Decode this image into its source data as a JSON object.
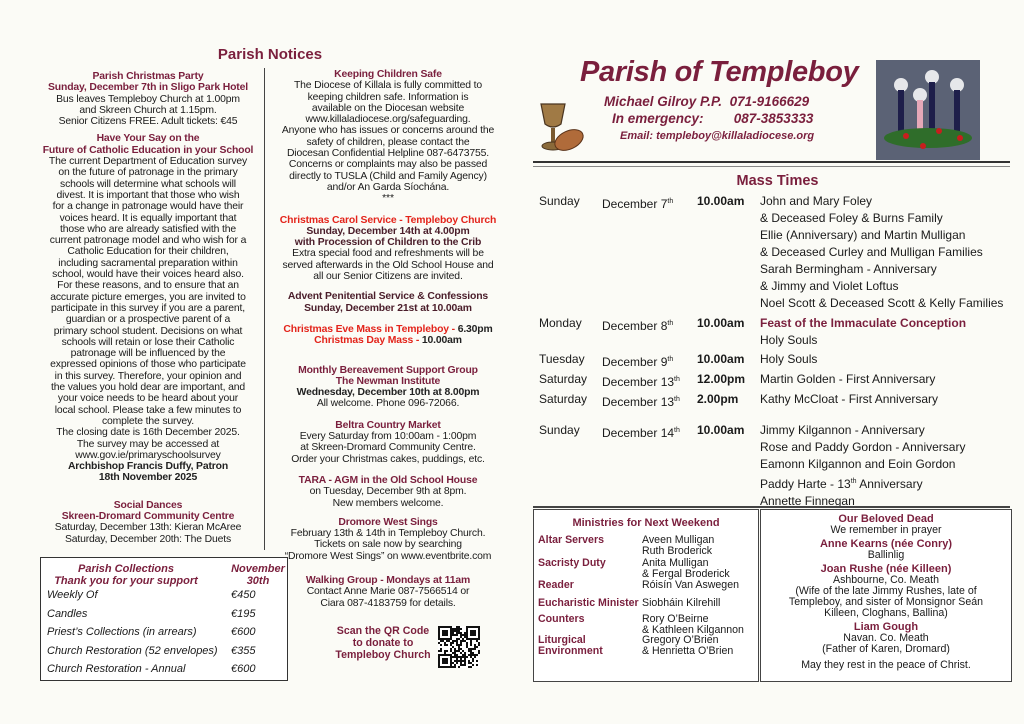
{
  "notices": {
    "title": "Parish Notices",
    "left": [
      {
        "lines": [
          {
            "s": "h",
            "t": "Parish Christmas Party"
          },
          {
            "s": "h",
            "t": "Sunday, December 7th in Sligo Park Hotel"
          },
          {
            "s": "n",
            "t": "Bus leaves Templeboy Church at 1.00pm"
          },
          {
            "s": "n",
            "t": "and Skreen Church at 1.15pm."
          },
          {
            "s": "n",
            "t": "Senior Citizens FREE.  Adult tickets: €45"
          }
        ]
      },
      {
        "lines": [
          {
            "s": "h",
            "t": "Have Your Say on the"
          },
          {
            "s": "h",
            "t": "Future of Catholic Education in your School"
          },
          {
            "s": "n",
            "t": "The current Department of Education survey"
          },
          {
            "s": "n",
            "t": "on the future of patronage in the primary"
          },
          {
            "s": "n",
            "t": "schools will determine what schools will"
          },
          {
            "s": "n",
            "t": "divest. It is important that those who wish"
          },
          {
            "s": "n",
            "t": "for a change in patronage would have their"
          },
          {
            "s": "n",
            "t": "voices heard. It is equally important that"
          },
          {
            "s": "n",
            "t": "those who are already satisfied with the"
          },
          {
            "s": "n",
            "t": "current patronage model and who wish for a"
          },
          {
            "s": "n",
            "t": "Catholic Education for their children,"
          },
          {
            "s": "n",
            "t": "including sacramental preparation within"
          },
          {
            "s": "n",
            "t": "school, would have their voices heard also."
          },
          {
            "s": "n",
            "t": "For these reasons, and to ensure that an"
          },
          {
            "s": "n",
            "t": "accurate picture emerges, you are invited to"
          },
          {
            "s": "n",
            "t": "participate in this survey if you are a parent,"
          },
          {
            "s": "n",
            "t": "guardian or a prospective parent of a"
          },
          {
            "s": "n",
            "t": "primary school student. Decisions on what"
          },
          {
            "s": "n",
            "t": "schools will retain or lose their Catholic"
          },
          {
            "s": "n",
            "t": "patronage will be influenced by the"
          },
          {
            "s": "n",
            "t": "expressed opinions of those who participate"
          },
          {
            "s": "n",
            "t": "in this survey. Therefore, your opinion and"
          },
          {
            "s": "n",
            "t": "the values you hold dear are important, and"
          },
          {
            "s": "n",
            "t": "your voice needs to be heard about your"
          },
          {
            "s": "n",
            "t": "local school. Please take a few minutes to"
          },
          {
            "s": "n",
            "t": "complete the survey."
          },
          {
            "s": "n",
            "t": "The closing date is 16th December 2025."
          },
          {
            "s": "n",
            "t": "The survey may be accessed at"
          },
          {
            "s": "n",
            "t": "www.gov.ie/primaryschoolsurvey"
          },
          {
            "s": "b",
            "t": "Archbishop Francis Duffy, Patron"
          },
          {
            "s": "b",
            "t": "18th November 2025"
          }
        ]
      },
      {
        "lines": [
          {
            "s": "h",
            "t": "Social Dances"
          },
          {
            "s": "h",
            "t": "Skreen-Dromard Community Centre"
          },
          {
            "s": "n",
            "t": "Saturday, December 13th: Kieran McAree"
          },
          {
            "s": "n",
            "t": "Saturday, December 20th: The Duets"
          }
        ]
      }
    ],
    "middle": [
      {
        "lines": [
          {
            "s": "h",
            "t": "Keeping Children Safe"
          },
          {
            "s": "n",
            "t": "The Diocese of Killala is fully committed to"
          },
          {
            "s": "n",
            "t": "keeping children safe. Information is"
          },
          {
            "s": "n",
            "t": "available on the Diocesan website"
          },
          {
            "s": "n",
            "t": "www.killaladiocese.org/safeguarding."
          },
          {
            "s": "n",
            "t": "Anyone who has issues or concerns around the"
          },
          {
            "s": "n",
            "t": "safety of children, please contact the"
          },
          {
            "s": "n",
            "t": "Diocesan Confidential Helpline 087-6473755."
          },
          {
            "s": "n",
            "t": "Concerns or complaints may also be passed"
          },
          {
            "s": "n",
            "t": "directly to TUSLA (Child and Family Agency)"
          },
          {
            "s": "n",
            "t": "and/or An Garda Síochána."
          },
          {
            "s": "n",
            "t": "***"
          }
        ]
      },
      {
        "lines": [
          {
            "s": "r",
            "t": "Christmas Carol Service - Templeboy Church"
          },
          {
            "s": "d",
            "t": "Sunday, December 14th at 4.00pm"
          },
          {
            "s": "d",
            "t": "with Procession of Children to the Crib"
          },
          {
            "s": "n",
            "t": "Extra special food and refreshments will be"
          },
          {
            "s": "n",
            "t": "served afterwards in the Old School House and"
          },
          {
            "s": "n",
            "t": "all our Senior Citizens are invited."
          }
        ]
      },
      {
        "lines": [
          {
            "s": "d",
            "t": "Advent Penitential Service & Confessions"
          },
          {
            "s": "d",
            "t": "Sunday, December 21st at 10.00am"
          }
        ]
      },
      {
        "lines": [
          {
            "s": "r",
            "t": "Christmas Eve Mass in Templeboy - ",
            "t2": "6.30pm"
          },
          {
            "s": "r",
            "t": "Christmas Day Mass - ",
            "t2": "10.00am"
          }
        ]
      },
      {
        "lines": [
          {
            "s": "h",
            "t": "Monthly Bereavement Support Group"
          },
          {
            "s": "h",
            "t": "The Newman Institute"
          },
          {
            "s": "b",
            "t": "Wednesday, December 10th at 8.00pm"
          },
          {
            "s": "n",
            "t": "All welcome. Phone 096-72066."
          }
        ]
      },
      {
        "lines": [
          {
            "s": "h",
            "t": "Beltra Country Market"
          },
          {
            "s": "n",
            "t": "Every Saturday from 10:00am - 1:00pm"
          },
          {
            "s": "n",
            "t": "at Skreen-Dromard Community Centre."
          },
          {
            "s": "n",
            "t": "Order your Christmas cakes, puddings, etc."
          }
        ]
      },
      {
        "lines": [
          {
            "s": "h",
            "t": "TARA - AGM in the Old School House"
          },
          {
            "s": "n",
            "t": "on Tuesday, December 9th at 8pm."
          },
          {
            "s": "n",
            "t": "New members welcome."
          }
        ]
      },
      {
        "lines": [
          {
            "s": "h",
            "t": "Dromore West Sings"
          },
          {
            "s": "n",
            "t": "February 13th & 14th in Templeboy Church."
          },
          {
            "s": "n",
            "t": "Tickets on sale now by searching"
          },
          {
            "s": "n",
            "t": "“Dromore West Sings” on www.eventbrite.com"
          }
        ]
      },
      {
        "lines": [
          {
            "s": "h",
            "t": "Walking Group - Mondays at 11am"
          },
          {
            "s": "n",
            "t": "Contact Anne Marie 087-7566514 or"
          },
          {
            "s": "n",
            "t": "Ciara 087-4183759 for details."
          }
        ]
      }
    ],
    "qr_text": [
      "Scan the QR Code",
      "to donate to",
      "Templeboy Church"
    ]
  },
  "collections": {
    "title_line1": "Parish Collections",
    "title_line2": "Thank you for your support",
    "date_line1": "November",
    "date_line2": "30th",
    "rows": [
      {
        "label": "Weekly Of",
        "amount": "€450"
      },
      {
        "label": "Candles",
        "amount": "€195"
      },
      {
        "label": "Priest’s Collections (in arrears)",
        "amount": "€600"
      },
      {
        "label": "Church Restoration (52 envelopes)",
        "amount": "€355"
      },
      {
        "label": "Church Restoration - Annual",
        "amount": "€600"
      }
    ]
  },
  "header": {
    "title": "Parish of Templeboy",
    "priest": "Michael Gilroy P.P.",
    "priest_phone": "071-9166629",
    "emergency_label": "In emergency:",
    "emergency_phone": "087-3853333",
    "email": "Email: templeboy@killaladiocese.org",
    "images": [
      "chalice-and-bread",
      "advent-wreath-candles"
    ]
  },
  "mass": {
    "title": "Mass Times",
    "rows": [
      {
        "day": "Sunday",
        "date": "December 7",
        "sup": "th",
        "time": "10.00am",
        "intentions": [
          {
            "t": "John and Mary Foley"
          },
          {
            "t": "& Deceased Foley & Burns Family"
          },
          {
            "t": "Ellie (Anniversary) and Martin Mulligan"
          },
          {
            "t": "& Deceased Curley and Mulligan Families"
          },
          {
            "t": "Sarah Bermingham - Anniversary"
          },
          {
            "t": "& Jimmy and Violet Loftus"
          },
          {
            "t": "Noel Scott & Deceased Scott & Kelly Families"
          }
        ]
      },
      {
        "day": "Monday",
        "date": "December 8",
        "sup": "th",
        "time": "10.00am",
        "intentions": [
          {
            "t": "Feast of the Immaculate Conception",
            "highlight": true
          },
          {
            "t": "Holy Souls"
          }
        ]
      },
      {
        "day": "Tuesday",
        "date": "December 9",
        "sup": "th",
        "time": "10.00am",
        "intentions": [
          {
            "t": "Holy Souls"
          }
        ]
      },
      {
        "day": "Saturday",
        "date": "December 13",
        "sup": "th",
        "time": "12.00pm",
        "intentions": [
          {
            "t": "Martin Golden - First Anniversary"
          }
        ]
      },
      {
        "day": "Saturday",
        "date": "December 13",
        "sup": "th",
        "time": "2.00pm",
        "intentions": [
          {
            "t": "Kathy McCloat - First Anniversary"
          }
        ]
      },
      {
        "day": "Sunday",
        "date": "December 14",
        "sup": "th",
        "time": "10.00am",
        "intentions": [
          {
            "t": "Jimmy Kilgannon - Anniversary"
          },
          {
            "t": "Rose and Paddy Gordon - Anniversary"
          },
          {
            "t": "Eamonn Kilgannon and Eoin Gordon"
          },
          {
            "t": "Paddy Harte - 13",
            "sup": "th",
            "t2": " Anniversary"
          },
          {
            "t": "Annette Finnegan"
          }
        ]
      }
    ]
  },
  "ministries": {
    "title": "Ministries for Next Weekend",
    "rows": [
      {
        "role": [
          "Altar Servers"
        ],
        "names": [
          "Aveen Mulligan",
          "Ruth Broderick"
        ]
      },
      {
        "role": [
          "Sacristy Duty"
        ],
        "names": [
          "Anita Mulligan",
          "& Fergal Broderick"
        ]
      },
      {
        "role": [
          "Reader"
        ],
        "names": [
          "Róisín Van Aswegen"
        ]
      },
      {
        "role": [
          "Eucharistic Minister"
        ],
        "names": [
          "Siobháin Kilrehill"
        ]
      },
      {
        "role": [
          "Counters"
        ],
        "names": [
          "Rory O’Beirne",
          "& Kathleen Kilgannon"
        ]
      },
      {
        "role": [
          "Liturgical",
          "Environment"
        ],
        "names": [
          "Gregory O’Brien",
          "& Henrietta O’Brien"
        ]
      }
    ]
  },
  "beloved_dead": {
    "lines": [
      {
        "s": "h",
        "t": "Our Beloved Dead"
      },
      {
        "s": "n",
        "t": "We remember  in prayer"
      },
      {
        "s": "h",
        "t": "Anne Kearns (née Conry)"
      },
      {
        "s": "n",
        "t": "Ballinlig"
      },
      {
        "s": "h",
        "t": "Joan Rushe (née Killeen)"
      },
      {
        "s": "n",
        "t": "Ashbourne, Co. Meath"
      },
      {
        "s": "n",
        "t": "(Wife of the late Jimmy Rushes, late of"
      },
      {
        "s": "n",
        "t": "Templeboy, and sister of Monsignor Seán"
      },
      {
        "s": "n",
        "t": "Killeen, Cloghans, Ballina)"
      },
      {
        "s": "h",
        "t": "Liam Gough"
      },
      {
        "s": "n",
        "t": "Navan. Co. Meath"
      },
      {
        "s": "n",
        "t": "(Father of Karen, Dromard)"
      },
      {
        "s": "n",
        "t": "May they rest in the peace of Christ."
      }
    ]
  },
  "colors": {
    "maroon": "#7a1f3d",
    "red": "#e3241b",
    "paper": "#fbfbf6"
  }
}
